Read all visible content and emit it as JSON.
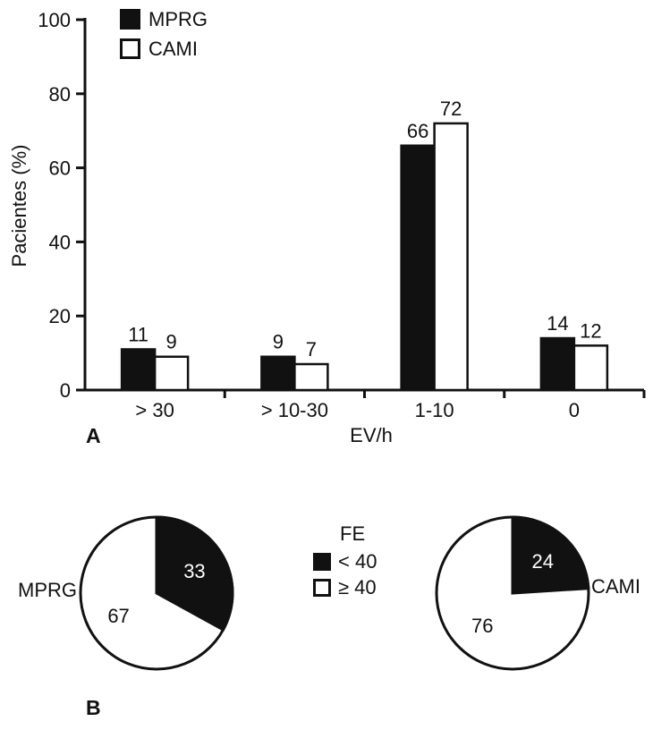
{
  "accent_colors": {
    "fill_dark": "#111111",
    "fill_light": "#ffffff",
    "background": "#ffffff"
  },
  "chart_data": [
    {
      "type": "bar",
      "panel_label": "A",
      "title": "",
      "categories": [
        "> 30",
        "> 10-30",
        "1-10",
        "0"
      ],
      "series": [
        {
          "name": "MPRG",
          "color": "#111111",
          "values": [
            11,
            9,
            66,
            14
          ]
        },
        {
          "name": "CAMI",
          "color": "#ffffff",
          "values": [
            9,
            7,
            72,
            12
          ]
        }
      ],
      "xlabel": "EV/h",
      "ylabel": "Pacientes (%)",
      "ylim": [
        0,
        100
      ],
      "yticks": [
        0,
        20,
        40,
        60,
        80,
        100
      ],
      "grid": false,
      "legend_position": "top-left",
      "bar_value_labels": true
    },
    {
      "type": "pie",
      "panel_label": "B",
      "legend_title": "FE",
      "legend": [
        {
          "label": "< 40",
          "color": "#111111"
        },
        {
          "label": "≥ 40",
          "color": "#ffffff"
        }
      ],
      "pies": [
        {
          "name": "MPRG",
          "label_side": "left",
          "slices": [
            {
              "legend": "< 40",
              "value": 33,
              "color": "#111111",
              "text_color": "#ffffff"
            },
            {
              "legend": "≥ 40",
              "value": 67,
              "color": "#ffffff",
              "text_color": "#111111"
            }
          ]
        },
        {
          "name": "CAMI",
          "label_side": "right",
          "slices": [
            {
              "legend": "< 40",
              "value": 24,
              "color": "#111111",
              "text_color": "#ffffff"
            },
            {
              "legend": "≥ 40",
              "value": 76,
              "color": "#ffffff",
              "text_color": "#111111"
            }
          ]
        }
      ]
    }
  ]
}
